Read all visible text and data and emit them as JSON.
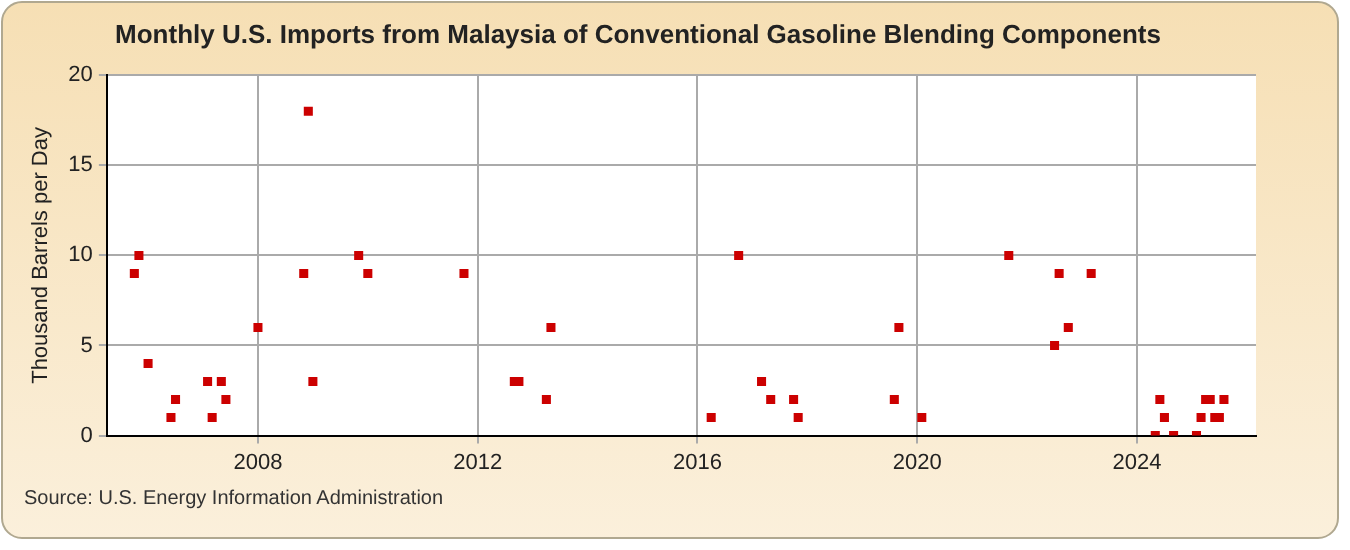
{
  "chart_data": {
    "type": "scatter",
    "title": "Monthly U.S. Imports from Malaysia of Conventional Gasoline Blending Components",
    "ylabel": "Thousand Barrels per Day",
    "annotations": [
      "Source: U.S. Energy Information Administration"
    ],
    "x": [
      "2005-10",
      "2005-11",
      "2006-01",
      "2006-06",
      "2006-07",
      "2007-02",
      "2007-03",
      "2007-05",
      "2007-06",
      "2008-01",
      "2008-11",
      "2008-12",
      "2009-01",
      "2009-11",
      "2010-01",
      "2011-10",
      "2012-09",
      "2012-10",
      "2013-04",
      "2013-05",
      "2016-04",
      "2016-10",
      "2017-03",
      "2017-05",
      "2017-10",
      "2017-11",
      "2019-08",
      "2019-09",
      "2020-02",
      "2021-09",
      "2022-07",
      "2022-08",
      "2022-10",
      "2023-03",
      "2024-05",
      "2024-06",
      "2024-07",
      "2024-09",
      "2025-02",
      "2025-03",
      "2025-04",
      "2025-05",
      "2025-06",
      "2025-07",
      "2025-08"
    ],
    "series": [
      {
        "color": "#cc0000",
        "values": [
          9,
          10,
          4,
          1,
          2,
          3,
          1,
          3,
          2,
          6,
          9,
          18,
          3,
          10,
          9,
          9,
          3,
          3,
          2,
          6,
          1,
          10,
          3,
          2,
          2,
          1,
          2,
          6,
          1,
          10,
          5,
          9,
          6,
          9,
          0,
          2,
          1,
          0,
          0,
          1,
          2,
          2,
          1,
          1,
          2
        ]
      }
    ],
    "xlim": [
      "2005-04",
      "2026-03"
    ],
    "xticks": [
      "2008",
      "2012",
      "2016",
      "2020",
      "2024"
    ],
    "ylim": [
      0,
      20
    ],
    "yticks": [
      0,
      5,
      10,
      15,
      20
    ],
    "grid": true,
    "legend": false,
    "marker": "square"
  }
}
